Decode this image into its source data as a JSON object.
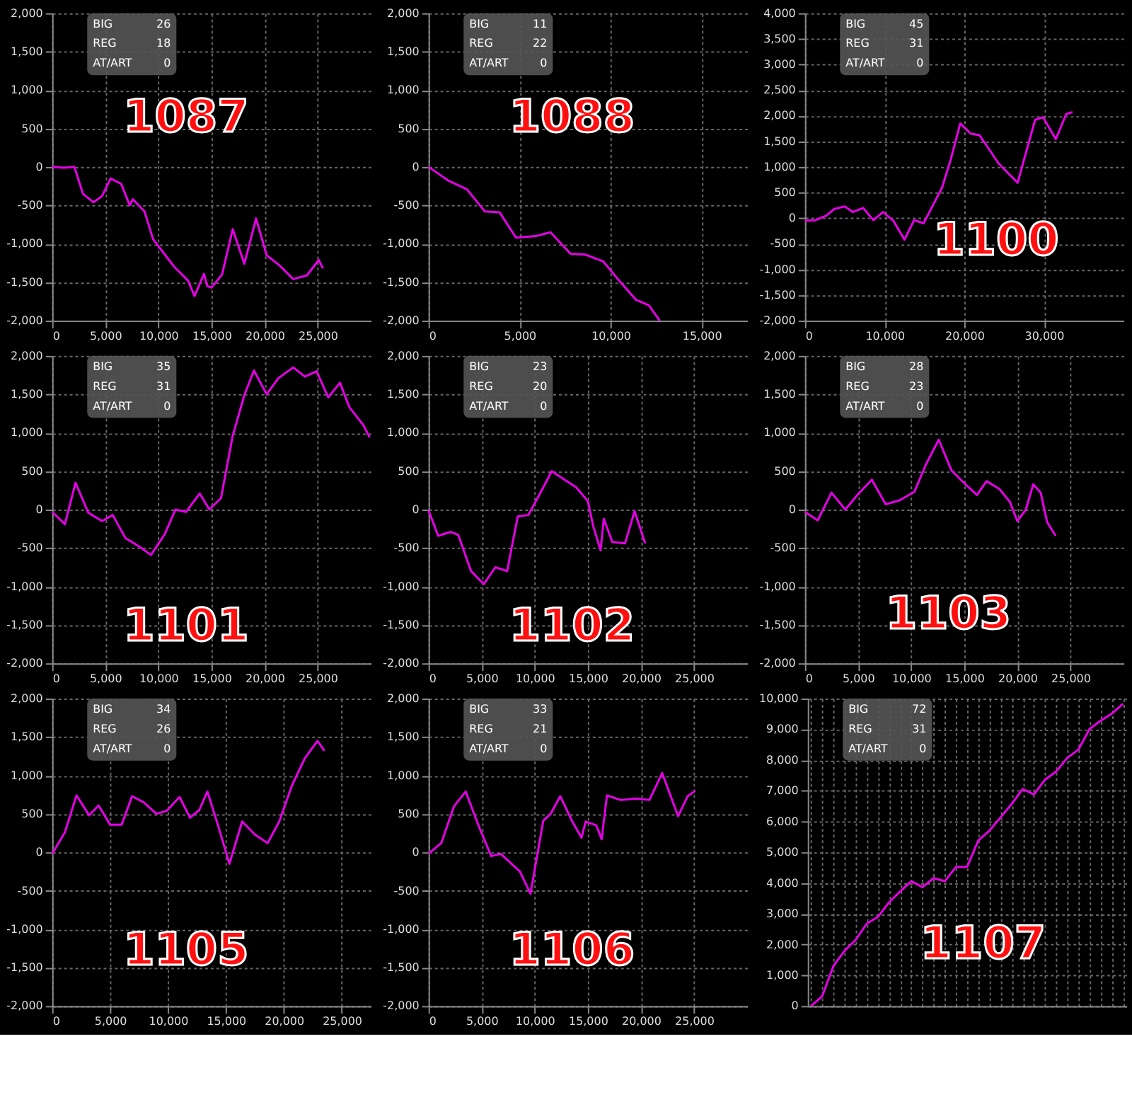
{
  "chart_data": [
    {
      "type": "line",
      "title": "1087",
      "annotations": [
        "BIG",
        "26",
        "REG",
        "18",
        "AT/ART",
        "0"
      ],
      "color": "#e600e6",
      "grid": true,
      "xlim": [
        0,
        30000
      ],
      "xticks": [
        0,
        {
          "value": 5000,
          "label": "5,000"
        },
        {
          "value": 10000,
          "label": "10,000"
        },
        {
          "value": 15000,
          "label": "15,000"
        },
        {
          "value": 20000,
          "label": "20,000"
        },
        {
          "value": 25000,
          "label": "25,000"
        }
      ],
      "ylim": [
        -2000,
        2000
      ],
      "yticks": [
        {
          "value": -2000,
          "label": "-2,000"
        },
        {
          "value": -1500,
          "label": "-1,500"
        },
        {
          "value": -1000,
          "label": "-1,000"
        },
        -500,
        0,
        500,
        {
          "value": 1000,
          "label": "1,000"
        },
        {
          "value": 1500,
          "label": "1,500"
        },
        {
          "value": 2000,
          "label": "2,000"
        }
      ],
      "x": [
        0,
        1100,
        2100,
        2900,
        3900,
        4700,
        5500,
        6500,
        7300,
        7600,
        8700,
        9500,
        10500,
        11500,
        12800,
        13400,
        14300,
        14600,
        15000,
        16000,
        17000,
        18100,
        19200,
        20200,
        21400,
        22700,
        24000,
        25100,
        25500
      ],
      "values": [
        0,
        -10,
        0,
        -350,
        -460,
        -380,
        -150,
        -220,
        -500,
        -420,
        -580,
        -940,
        -1120,
        -1300,
        -1480,
        -1680,
        -1390,
        -1550,
        -1570,
        -1400,
        -810,
        -1260,
        -670,
        -1150,
        -1280,
        -1460,
        -1410,
        -1210,
        -1320
      ]
    },
    {
      "type": "line",
      "title": "1088",
      "annotations": [
        "BIG",
        "11",
        "REG",
        "22",
        "AT/ART",
        "0"
      ],
      "color": "#e600e6",
      "grid": true,
      "xlim": [
        0,
        17500
      ],
      "xticks": [
        0,
        {
          "value": 5000,
          "label": "5,000"
        },
        {
          "value": 10000,
          "label": "10,000"
        },
        {
          "value": 15000,
          "label": "15,000"
        }
      ],
      "ylim": [
        -2000,
        2000
      ],
      "yticks": [
        {
          "value": -2000,
          "label": "-2,000"
        },
        {
          "value": -1500,
          "label": "-1,500"
        },
        {
          "value": -1000,
          "label": "-1,000"
        },
        -500,
        0,
        500,
        {
          "value": 1000,
          "label": "1,000"
        },
        {
          "value": 1500,
          "label": "1,500"
        },
        {
          "value": 2000,
          "label": "2,000"
        }
      ],
      "x": [
        0,
        1100,
        2100,
        3100,
        3900,
        4800,
        5900,
        6700,
        7800,
        8600,
        9600,
        10400,
        11400,
        12100,
        12700
      ],
      "values": [
        0,
        -180,
        -290,
        -580,
        -590,
        -920,
        -900,
        -850,
        -1130,
        -1140,
        -1230,
        -1460,
        -1730,
        -1800,
        -2000
      ]
    },
    {
      "type": "line",
      "title": "1100",
      "annotations": [
        "BIG",
        "45",
        "REG",
        "31",
        "AT/ART",
        "0"
      ],
      "color": "#e600e6",
      "grid": true,
      "xlim": [
        0,
        40000
      ],
      "xticks": [
        0,
        {
          "value": 10000,
          "label": "10,000"
        },
        {
          "value": 20000,
          "label": "20,000"
        },
        {
          "value": 30000,
          "label": "30,000"
        }
      ],
      "ylim": [
        -2000,
        4000
      ],
      "yticks": [
        {
          "value": -2000,
          "label": "-2,000"
        },
        {
          "value": -1500,
          "label": "-1,500"
        },
        {
          "value": -1000,
          "label": "-1,000"
        },
        -500,
        0,
        500,
        {
          "value": 1000,
          "label": "1,000"
        },
        {
          "value": 1500,
          "label": "1,500"
        },
        {
          "value": 2000,
          "label": "2,000"
        },
        {
          "value": 2500,
          "label": "2,500"
        },
        {
          "value": 3000,
          "label": "3,000"
        },
        {
          "value": 3500,
          "label": "3,500"
        },
        {
          "value": 4000,
          "label": "4,000"
        }
      ],
      "x": [
        0,
        1300,
        2700,
        3700,
        5000,
        6000,
        7300,
        8600,
        9800,
        11100,
        12500,
        13700,
        14900,
        16100,
        17200,
        18300,
        19500,
        20800,
        21900,
        23100,
        24300,
        25500,
        26700,
        28900,
        29900,
        31500,
        32800,
        33600
      ],
      "values": [
        -50,
        -40,
        50,
        180,
        230,
        120,
        200,
        -40,
        120,
        -50,
        -420,
        -40,
        -100,
        260,
        590,
        1140,
        1850,
        1650,
        1620,
        1350,
        1070,
        880,
        690,
        1920,
        1970,
        1540,
        2030,
        2070
      ]
    },
    {
      "type": "line",
      "title": "1101",
      "annotations": [
        "BIG",
        "35",
        "REG",
        "31",
        "AT/ART",
        "0"
      ],
      "color": "#e600e6",
      "grid": true,
      "xlim": [
        0,
        30000
      ],
      "xticks": [
        0,
        {
          "value": 5000,
          "label": "5,000"
        },
        {
          "value": 10000,
          "label": "10,000"
        },
        {
          "value": 15000,
          "label": "15,000"
        },
        {
          "value": 20000,
          "label": "20,000"
        },
        {
          "value": 25000,
          "label": "25,000"
        }
      ],
      "ylim": [
        -2000,
        2000
      ],
      "yticks": [
        {
          "value": -2000,
          "label": "-2,000"
        },
        {
          "value": -1500,
          "label": "-1,500"
        },
        {
          "value": -1000,
          "label": "-1,000"
        },
        -500,
        0,
        500,
        {
          "value": 1000,
          "label": "1,000"
        },
        {
          "value": 1500,
          "label": "1,500"
        },
        {
          "value": 2000,
          "label": "2,000"
        }
      ],
      "x": [
        0,
        1200,
        2200,
        3400,
        4700,
        5700,
        6900,
        8200,
        9300,
        10600,
        11600,
        12600,
        13900,
        14800,
        15900,
        17000,
        18100,
        19000,
        20200,
        21300,
        22700,
        23800,
        24900,
        26000,
        27100,
        28000,
        29300,
        29900
      ],
      "values": [
        -30,
        -190,
        350,
        -40,
        -150,
        -70,
        -370,
        -480,
        -590,
        -320,
        0,
        -30,
        210,
        0,
        150,
        960,
        1490,
        1810,
        1500,
        1710,
        1850,
        1730,
        1800,
        1460,
        1650,
        1330,
        1100,
        940
      ]
    },
    {
      "type": "line",
      "title": "1102",
      "annotations": [
        "BIG",
        "23",
        "REG",
        "20",
        "AT/ART",
        "0"
      ],
      "color": "#e600e6",
      "grid": true,
      "xlim": [
        0,
        30000
      ],
      "xticks": [
        0,
        {
          "value": 5000,
          "label": "5,000"
        },
        {
          "value": 10000,
          "label": "10,000"
        },
        {
          "value": 15000,
          "label": "15,000"
        },
        {
          "value": 20000,
          "label": "20,000"
        },
        {
          "value": 25000,
          "label": "25,000"
        }
      ],
      "ylim": [
        -2000,
        2000
      ],
      "yticks": [
        {
          "value": -2000,
          "label": "-2,000"
        },
        {
          "value": -1500,
          "label": "-1,500"
        },
        {
          "value": -1000,
          "label": "-1,000"
        },
        -500,
        0,
        500,
        {
          "value": 1000,
          "label": "1,000"
        },
        {
          "value": 1500,
          "label": "1,500"
        },
        {
          "value": 2000,
          "label": "2,000"
        }
      ],
      "x": [
        0,
        900,
        2100,
        2800,
        4000,
        5200,
        6300,
        7400,
        8400,
        9400,
        10500,
        11600,
        12800,
        13900,
        15000,
        15500,
        16200,
        16500,
        17300,
        18500,
        19400,
        20400
      ],
      "values": [
        -10,
        -340,
        -290,
        -330,
        -800,
        -970,
        -750,
        -800,
        -90,
        -70,
        210,
        500,
        390,
        290,
        110,
        -210,
        -530,
        -120,
        -420,
        -440,
        -20,
        -440
      ]
    },
    {
      "type": "line",
      "title": "1103",
      "annotations": [
        "BIG",
        "28",
        "REG",
        "23",
        "AT/ART",
        "0"
      ],
      "color": "#e600e6",
      "grid": true,
      "xlim": [
        0,
        30000
      ],
      "xticks": [
        0,
        {
          "value": 5000,
          "label": "5,000"
        },
        {
          "value": 10000,
          "label": "10,000"
        },
        {
          "value": 15000,
          "label": "15,000"
        },
        {
          "value": 20000,
          "label": "20,000"
        },
        {
          "value": 25000,
          "label": "25,000"
        }
      ],
      "ylim": [
        -2000,
        2000
      ],
      "yticks": [
        {
          "value": -2000,
          "label": "-2,000"
        },
        {
          "value": -1500,
          "label": "-1,500"
        },
        {
          "value": -1000,
          "label": "-1,000"
        },
        -500,
        0,
        500,
        {
          "value": 1000,
          "label": "1,000"
        },
        {
          "value": 1500,
          "label": "1,500"
        },
        {
          "value": 2000,
          "label": "2,000"
        }
      ],
      "x": [
        0,
        1200,
        2500,
        3800,
        5000,
        6300,
        7600,
        8900,
        10300,
        11400,
        12600,
        13800,
        15100,
        16200,
        17100,
        18300,
        19300,
        20000,
        20800,
        21500,
        22200,
        22800,
        23600
      ],
      "values": [
        -30,
        -140,
        220,
        0,
        200,
        390,
        70,
        120,
        230,
        590,
        910,
        510,
        330,
        190,
        370,
        270,
        100,
        -150,
        0,
        330,
        220,
        -160,
        -340
      ]
    },
    {
      "type": "line",
      "title": "1105",
      "annotations": [
        "BIG",
        "34",
        "REG",
        "26",
        "AT/ART",
        "0"
      ],
      "color": "#e600e6",
      "grid": true,
      "xlim": [
        0,
        27500
      ],
      "xticks": [
        0,
        {
          "value": 5000,
          "label": "5,000"
        },
        {
          "value": 10000,
          "label": "10,000"
        },
        {
          "value": 15000,
          "label": "15,000"
        },
        {
          "value": 20000,
          "label": "20,000"
        },
        {
          "value": 25000,
          "label": "25,000"
        }
      ],
      "ylim": [
        -2000,
        2000
      ],
      "yticks": [
        {
          "value": -2000,
          "label": "-2,000"
        },
        {
          "value": -1500,
          "label": "-1,500"
        },
        {
          "value": -1000,
          "label": "-1,000"
        },
        -500,
        0,
        500,
        {
          "value": 1000,
          "label": "1,000"
        },
        {
          "value": 1500,
          "label": "1,500"
        },
        {
          "value": 2000,
          "label": "2,000"
        }
      ],
      "x": [
        0,
        1100,
        2100,
        3200,
        4000,
        5000,
        6000,
        6900,
        7900,
        9000,
        9900,
        11000,
        11900,
        12700,
        13400,
        14300,
        15300,
        16400,
        17500,
        18600,
        19600,
        20700,
        21800,
        22900,
        23500
      ],
      "values": [
        -20,
        260,
        740,
        480,
        610,
        360,
        360,
        730,
        650,
        500,
        540,
        720,
        450,
        550,
        790,
        360,
        -150,
        400,
        230,
        120,
        400,
        870,
        1220,
        1450,
        1320
      ]
    },
    {
      "type": "line",
      "title": "1106",
      "annotations": [
        "BIG",
        "33",
        "REG",
        "21",
        "AT/ART",
        "0"
      ],
      "color": "#e600e6",
      "grid": true,
      "xlim": [
        0,
        30000
      ],
      "xticks": [
        0,
        {
          "value": 5000,
          "label": "5,000"
        },
        {
          "value": 10000,
          "label": "10,000"
        },
        {
          "value": 15000,
          "label": "15,000"
        },
        {
          "value": 20000,
          "label": "20,000"
        },
        {
          "value": 25000,
          "label": "25,000"
        }
      ],
      "ylim": [
        -2000,
        2000
      ],
      "yticks": [
        {
          "value": -2000,
          "label": "-2,000"
        },
        {
          "value": -1500,
          "label": "-1,500"
        },
        {
          "value": -1000,
          "label": "-1,000"
        },
        -500,
        0,
        500,
        {
          "value": 1000,
          "label": "1,000"
        },
        {
          "value": 1500,
          "label": "1,500"
        },
        {
          "value": 2000,
          "label": "2,000"
        }
      ],
      "x": [
        0,
        1200,
        2400,
        3500,
        4700,
        5900,
        6800,
        8600,
        9600,
        10800,
        11500,
        12400,
        13500,
        14400,
        14800,
        15800,
        16300,
        16800,
        18100,
        19600,
        20800,
        22000,
        23500,
        24400,
        25100
      ],
      "values": [
        -20,
        120,
        600,
        790,
        350,
        -50,
        -20,
        -250,
        -540,
        410,
        500,
        730,
        410,
        190,
        400,
        350,
        170,
        740,
        680,
        700,
        680,
        1030,
        470,
        730,
        800
      ]
    },
    {
      "type": "line",
      "title": "1107",
      "annotations": [
        "BIG",
        "72",
        "REG",
        "31",
        "AT/ART",
        "0"
      ],
      "color": "#e600e6",
      "grid": true,
      "tick_labels": "y",
      "ylim": [
        0,
        10000
      ],
      "yticks": [
        0,
        {
          "value": 1000,
          "label": "1,000"
        },
        {
          "value": 2000,
          "label": "2,000"
        },
        {
          "value": 3000,
          "label": "3,000"
        },
        {
          "value": 4000,
          "label": "4,000"
        },
        {
          "value": 5000,
          "label": "5,000"
        },
        {
          "value": 6000,
          "label": "6,000"
        },
        {
          "value": 7000,
          "label": "7,000"
        },
        {
          "value": 8000,
          "label": "8,000"
        },
        {
          "value": 9000,
          "label": "9,000"
        },
        {
          "value": 10000,
          "label": "10,000"
        }
      ],
      "categories": [
        null,
        null,
        null,
        null,
        null,
        null,
        null,
        null,
        null,
        null,
        null,
        null,
        null,
        null,
        null,
        null,
        null,
        null,
        null,
        null,
        null,
        null,
        null,
        null,
        null,
        null,
        null,
        null,
        null
      ],
      "values": [
        0,
        320,
        1300,
        1790,
        2150,
        2680,
        2900,
        3370,
        3730,
        4060,
        3870,
        4160,
        4060,
        4520,
        4520,
        5380,
        5700,
        6130,
        6570,
        7060,
        6880,
        7360,
        7630,
        8070,
        8340,
        9010,
        9280,
        9510,
        9830
      ]
    }
  ]
}
